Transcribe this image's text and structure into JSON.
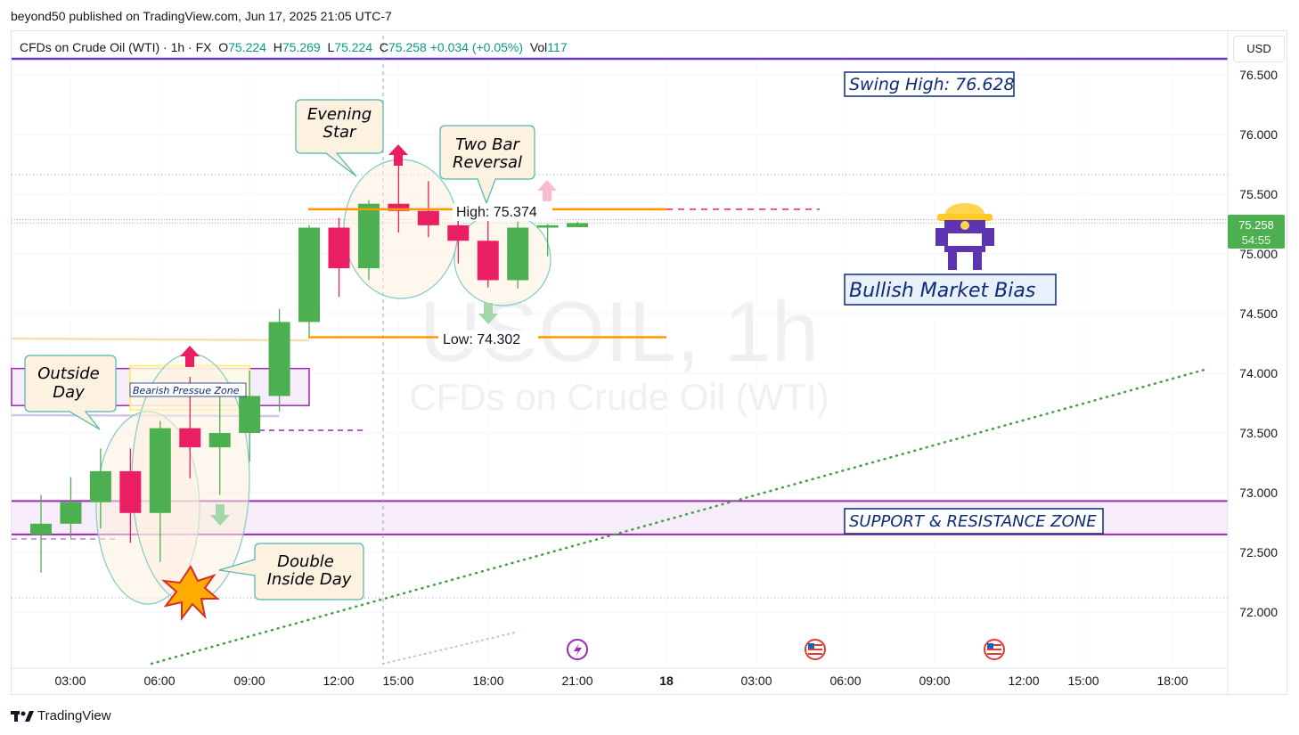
{
  "publisher": "beyond50 published on TradingView.com, Jun 17, 2025 21:05 UTC-7",
  "legend": {
    "symbol": "CFDs on Crude Oil (WTI) · 1h · FX",
    "o_label": "O",
    "o": "75.224",
    "h_label": "H",
    "h": "75.269",
    "l_label": "L",
    "l": "75.224",
    "c_label": "C",
    "c": "75.258",
    "change": "+0.034 (+0.05%)",
    "vol_label": "Vol",
    "vol": "117"
  },
  "currency": "USD",
  "watermark": {
    "line1": "USOIL, 1h",
    "line2": "CFDs on Crude Oil (WTI)"
  },
  "price_tag": {
    "price": "75.258",
    "countdown": "54:55"
  },
  "footer": {
    "brand": "TradingView",
    "logo": "tradingview-logo-icon"
  },
  "colors": {
    "up": "#4caf50",
    "down": "#e91e63",
    "accent_purple": "#9c27b0",
    "orange": "#ff9800",
    "navy": "#0d2b78"
  },
  "annotations": {
    "swing_high": "Swing High: 76.628",
    "bullish": "Bullish Market Bias",
    "sr_zone": "SUPPORT & RESISTANCE ZONE",
    "high_label": "High: 75.374",
    "low_label": "Low: 74.302",
    "bearish_zone": "Bearish Pressue Zone",
    "evening_star": [
      "Evening",
      "Star"
    ],
    "two_bar": [
      "Two Bar",
      "Reversal"
    ],
    "outside_day": [
      "Outside",
      "Day"
    ],
    "double_inside": [
      "Double",
      "Inside Day"
    ]
  },
  "chart_data": {
    "type": "candlestick",
    "title": "CFDs on Crude Oil (WTI) · 1h · FX",
    "x_ticks": [
      "03:00",
      "06:00",
      "09:00",
      "12:00",
      "15:00",
      "18:00",
      "21:00",
      "18",
      "03:00",
      "06:00",
      "09:00",
      "12:00",
      "15:00",
      "18:00"
    ],
    "y_ticks": [
      "72.000",
      "72.500",
      "73.000",
      "73.500",
      "74.000",
      "74.500",
      "75.000",
      "75.500",
      "76.000",
      "76.500"
    ],
    "ylim": [
      71.67,
      76.8
    ],
    "candles": [
      {
        "o": 72.65,
        "h": 72.98,
        "l": 72.33,
        "c": 72.74
      },
      {
        "o": 72.74,
        "h": 73.13,
        "l": 72.62,
        "c": 72.92
      },
      {
        "o": 72.92,
        "h": 73.37,
        "l": 72.7,
        "c": 73.18
      },
      {
        "o": 73.18,
        "h": 73.37,
        "l": 72.58,
        "c": 72.83
      },
      {
        "o": 72.83,
        "h": 73.6,
        "l": 72.42,
        "c": 73.54
      },
      {
        "o": 73.54,
        "h": 73.97,
        "l": 73.12,
        "c": 73.38
      },
      {
        "o": 73.38,
        "h": 73.92,
        "l": 72.98,
        "c": 73.5
      },
      {
        "o": 73.5,
        "h": 74.02,
        "l": 73.26,
        "c": 73.81
      },
      {
        "o": 73.81,
        "h": 74.54,
        "l": 73.68,
        "c": 74.43
      },
      {
        "o": 74.43,
        "h": 75.24,
        "l": 74.3,
        "c": 75.22
      },
      {
        "o": 75.22,
        "h": 75.3,
        "l": 74.64,
        "c": 74.88
      },
      {
        "o": 74.88,
        "h": 75.45,
        "l": 74.78,
        "c": 75.42
      },
      {
        "o": 75.42,
        "h": 75.74,
        "l": 75.18,
        "c": 75.36
      },
      {
        "o": 75.36,
        "h": 75.61,
        "l": 75.14,
        "c": 75.24
      },
      {
        "o": 75.24,
        "h": 75.33,
        "l": 74.92,
        "c": 75.11
      },
      {
        "o": 75.11,
        "h": 75.31,
        "l": 74.72,
        "c": 74.78
      },
      {
        "o": 74.78,
        "h": 75.27,
        "l": 74.71,
        "c": 75.22
      },
      {
        "o": 75.22,
        "h": 75.25,
        "l": 74.98,
        "c": 75.24
      },
      {
        "o": 75.224,
        "h": 75.269,
        "l": 75.224,
        "c": 75.258
      }
    ],
    "levels": {
      "swing_high": 76.628,
      "recent_high": 75.374,
      "recent_low": 74.302,
      "current": 75.258
    },
    "sr_zone": [
      72.65,
      72.93
    ],
    "bearish_zone": [
      73.73,
      74.04
    ]
  }
}
